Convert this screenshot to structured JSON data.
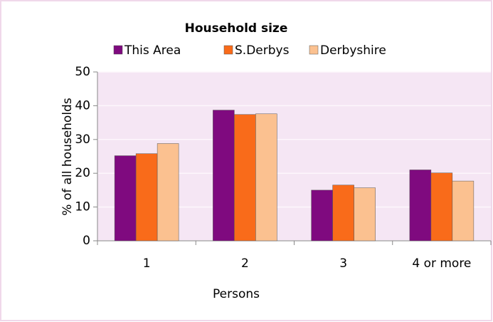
{
  "chart_data": {
    "type": "bar",
    "title": "Household size",
    "categories": [
      "1",
      "2",
      "3",
      "4 or more"
    ],
    "series": [
      {
        "name": "This Area",
        "color": "#7f0a7f",
        "values": [
          25.2,
          38.7,
          15.0,
          21.0
        ]
      },
      {
        "name": "S.Derbys",
        "color": "#f96b1a",
        "values": [
          25.8,
          37.4,
          16.5,
          20.1
        ]
      },
      {
        "name": "Derbyshire",
        "color": "#fbc190",
        "values": [
          28.8,
          37.6,
          15.7,
          17.7
        ]
      }
    ],
    "x_label": "Persons",
    "y_label": "% of all households",
    "ylim": [
      0,
      50
    ],
    "yticks": [
      0,
      10,
      20,
      30,
      40,
      50
    ],
    "grid": true
  }
}
